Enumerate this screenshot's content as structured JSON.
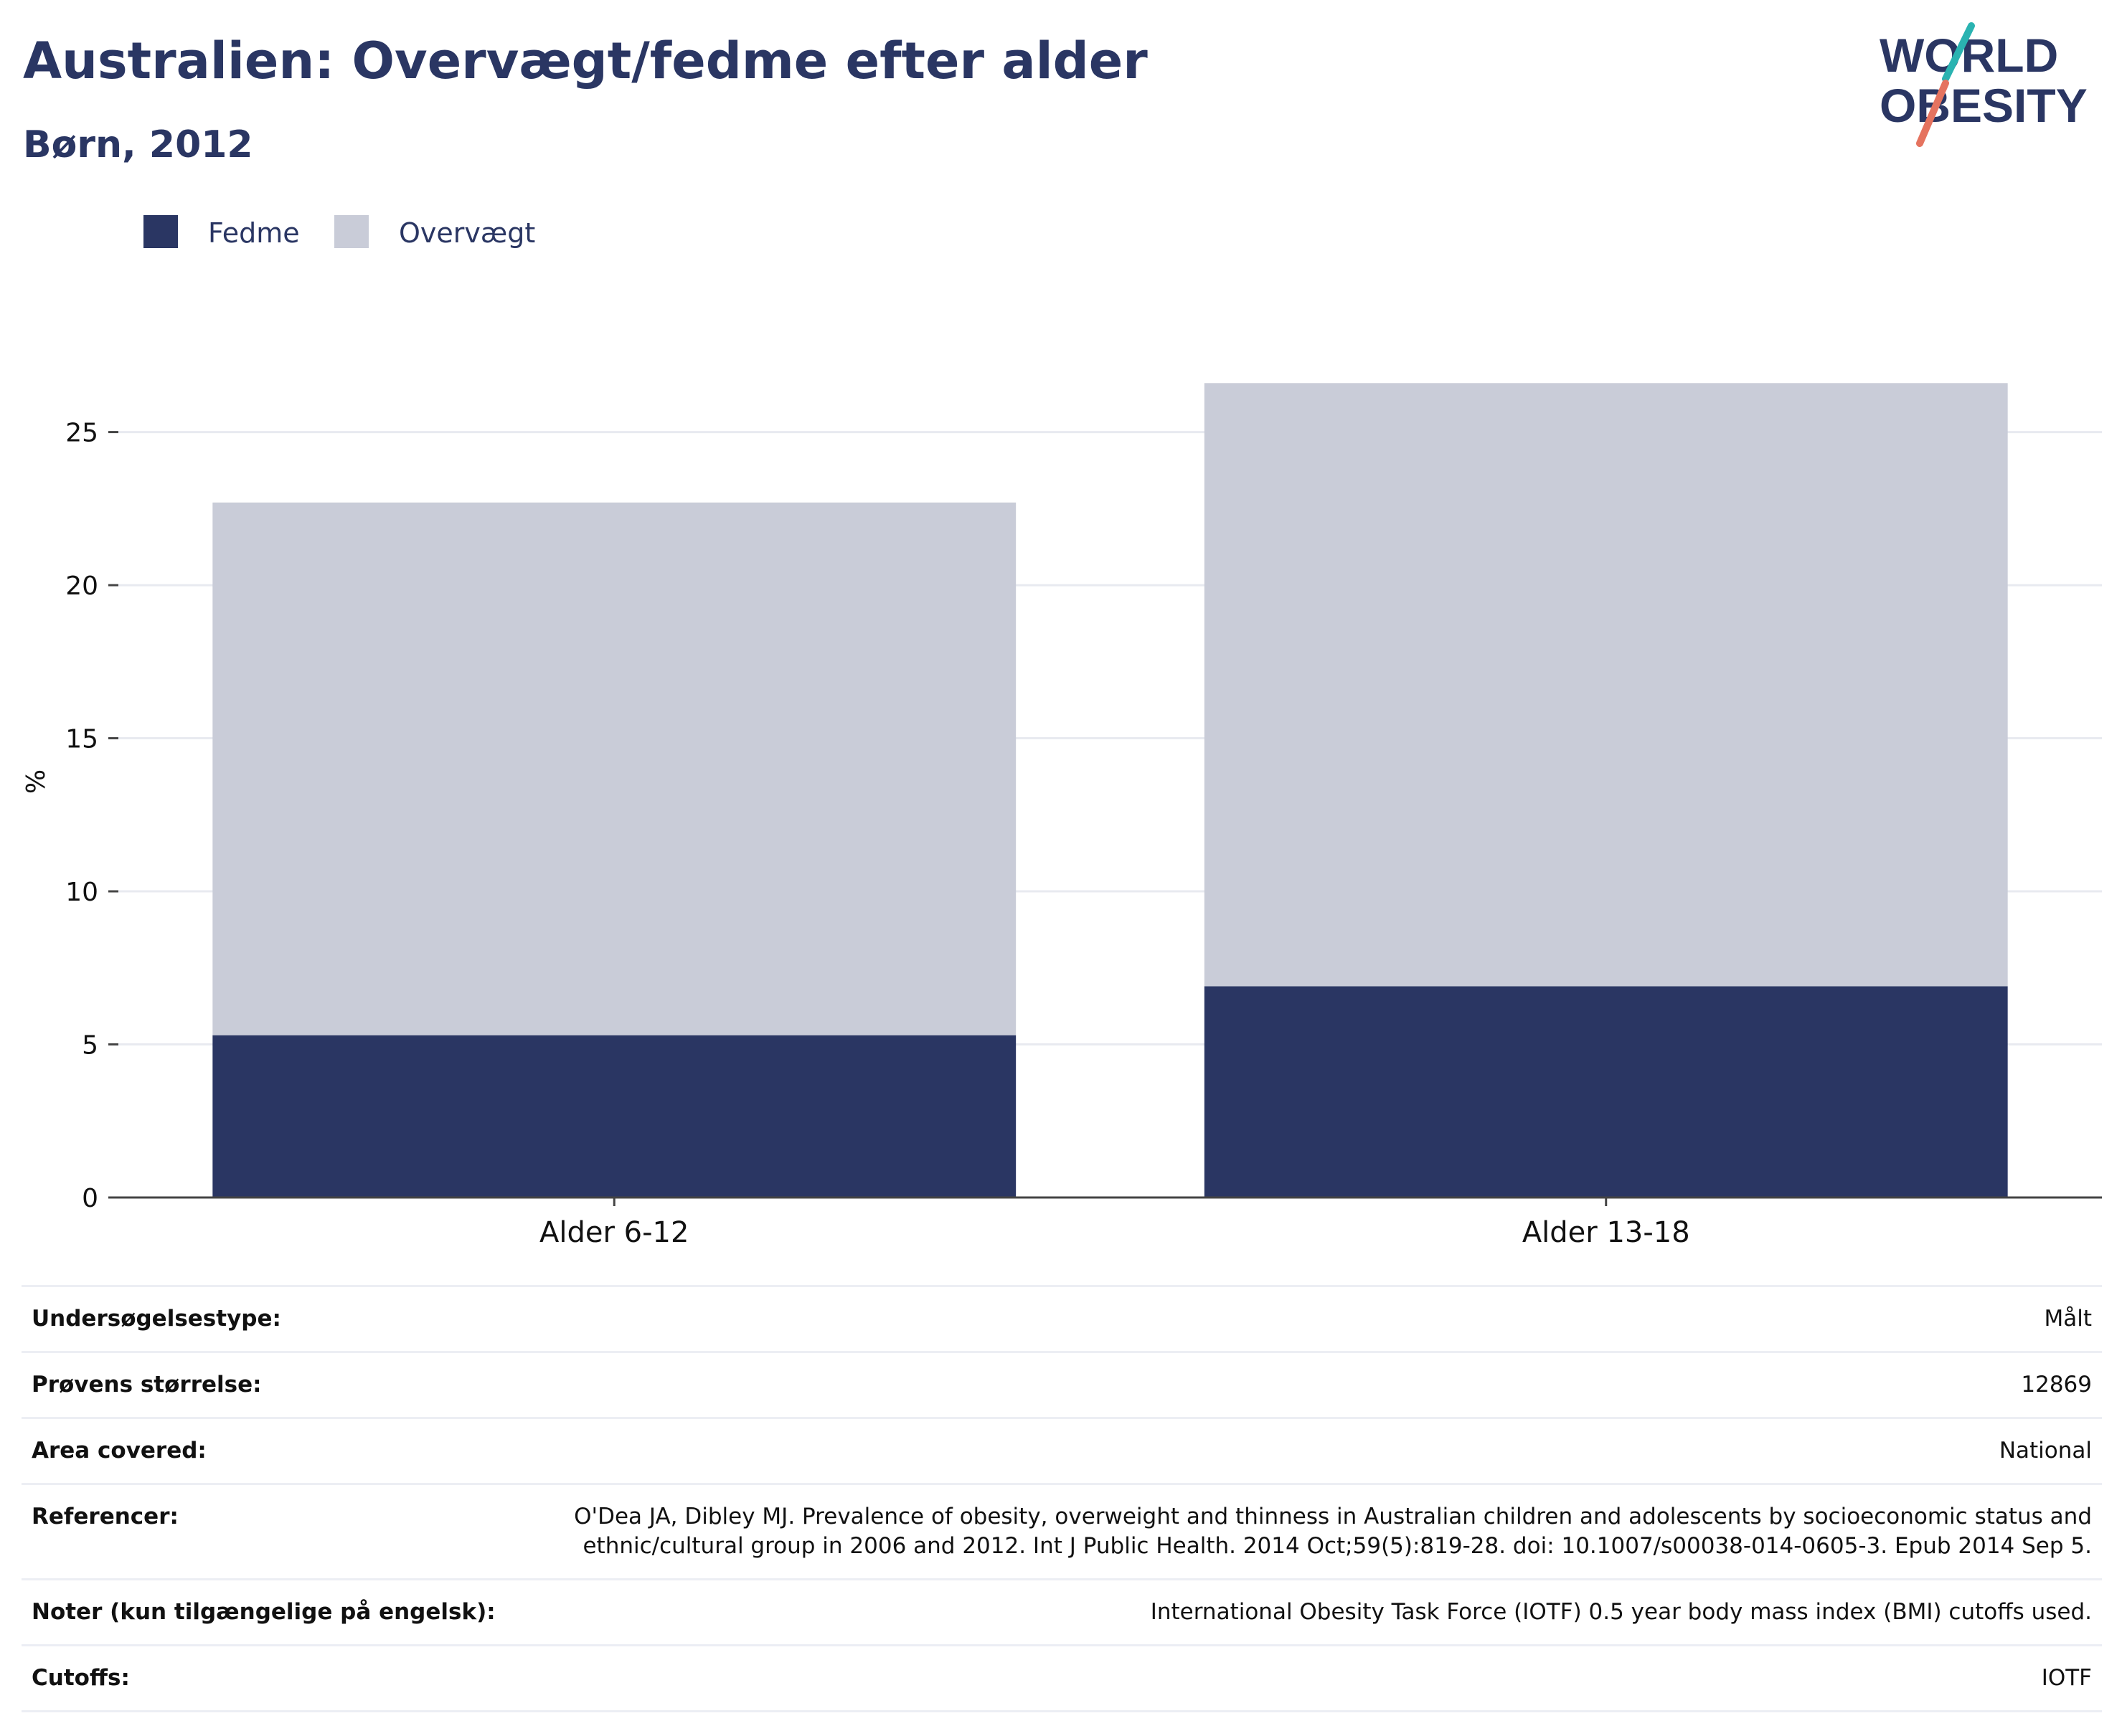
{
  "header": {
    "title": "Australien: Overvægt/fedme efter alder",
    "subtitle": "Børn, 2012"
  },
  "logo": {
    "line1": "WORLD",
    "line2": "OBESITY",
    "icon": "world-obesity-logo-icon",
    "colors": {
      "text": "#2a3663",
      "slash_top": "#2ab3b1",
      "slash_bottom": "#e5735f"
    }
  },
  "chart_data": {
    "type": "bar",
    "stacked": true,
    "categories": [
      "Alder 6-12",
      "Alder 13-18"
    ],
    "series": [
      {
        "name": "Fedme",
        "values": [
          5.3,
          6.9
        ],
        "color": "#2a3663"
      },
      {
        "name": "Overvægt",
        "values": [
          17.4,
          19.7
        ],
        "color": "#c9ccd8"
      }
    ],
    "ylabel": "%",
    "xlabel": "",
    "ylim": [
      0,
      26.7
    ],
    "yticks": [
      0,
      5,
      10,
      15,
      20,
      25
    ],
    "grid": true,
    "legend": "top-left"
  },
  "info": {
    "rows": [
      {
        "key": "Undersøgelsestype:",
        "value": "Målt"
      },
      {
        "key": "Prøvens størrelse:",
        "value": "12869"
      },
      {
        "key": "Area covered:",
        "value": "National"
      },
      {
        "key": "Referencer:",
        "value": "O'Dea JA, Dibley MJ. Prevalence of obesity, overweight and thinness in Australian children and adolescents by socioeconomic status and ethnic/cultural group in 2006 and 2012. Int J Public Health. 2014 Oct;59(5):819-28. doi: 10.1007/s00038-014-0605-3. Epub 2014 Sep 5."
      },
      {
        "key": "Noter (kun tilgængelige på engelsk):",
        "value": "International Obesity Task Force (IOTF) 0.5 year body mass index (BMI) cutoffs used."
      },
      {
        "key": "Cutoffs:",
        "value": "IOTF"
      }
    ]
  }
}
